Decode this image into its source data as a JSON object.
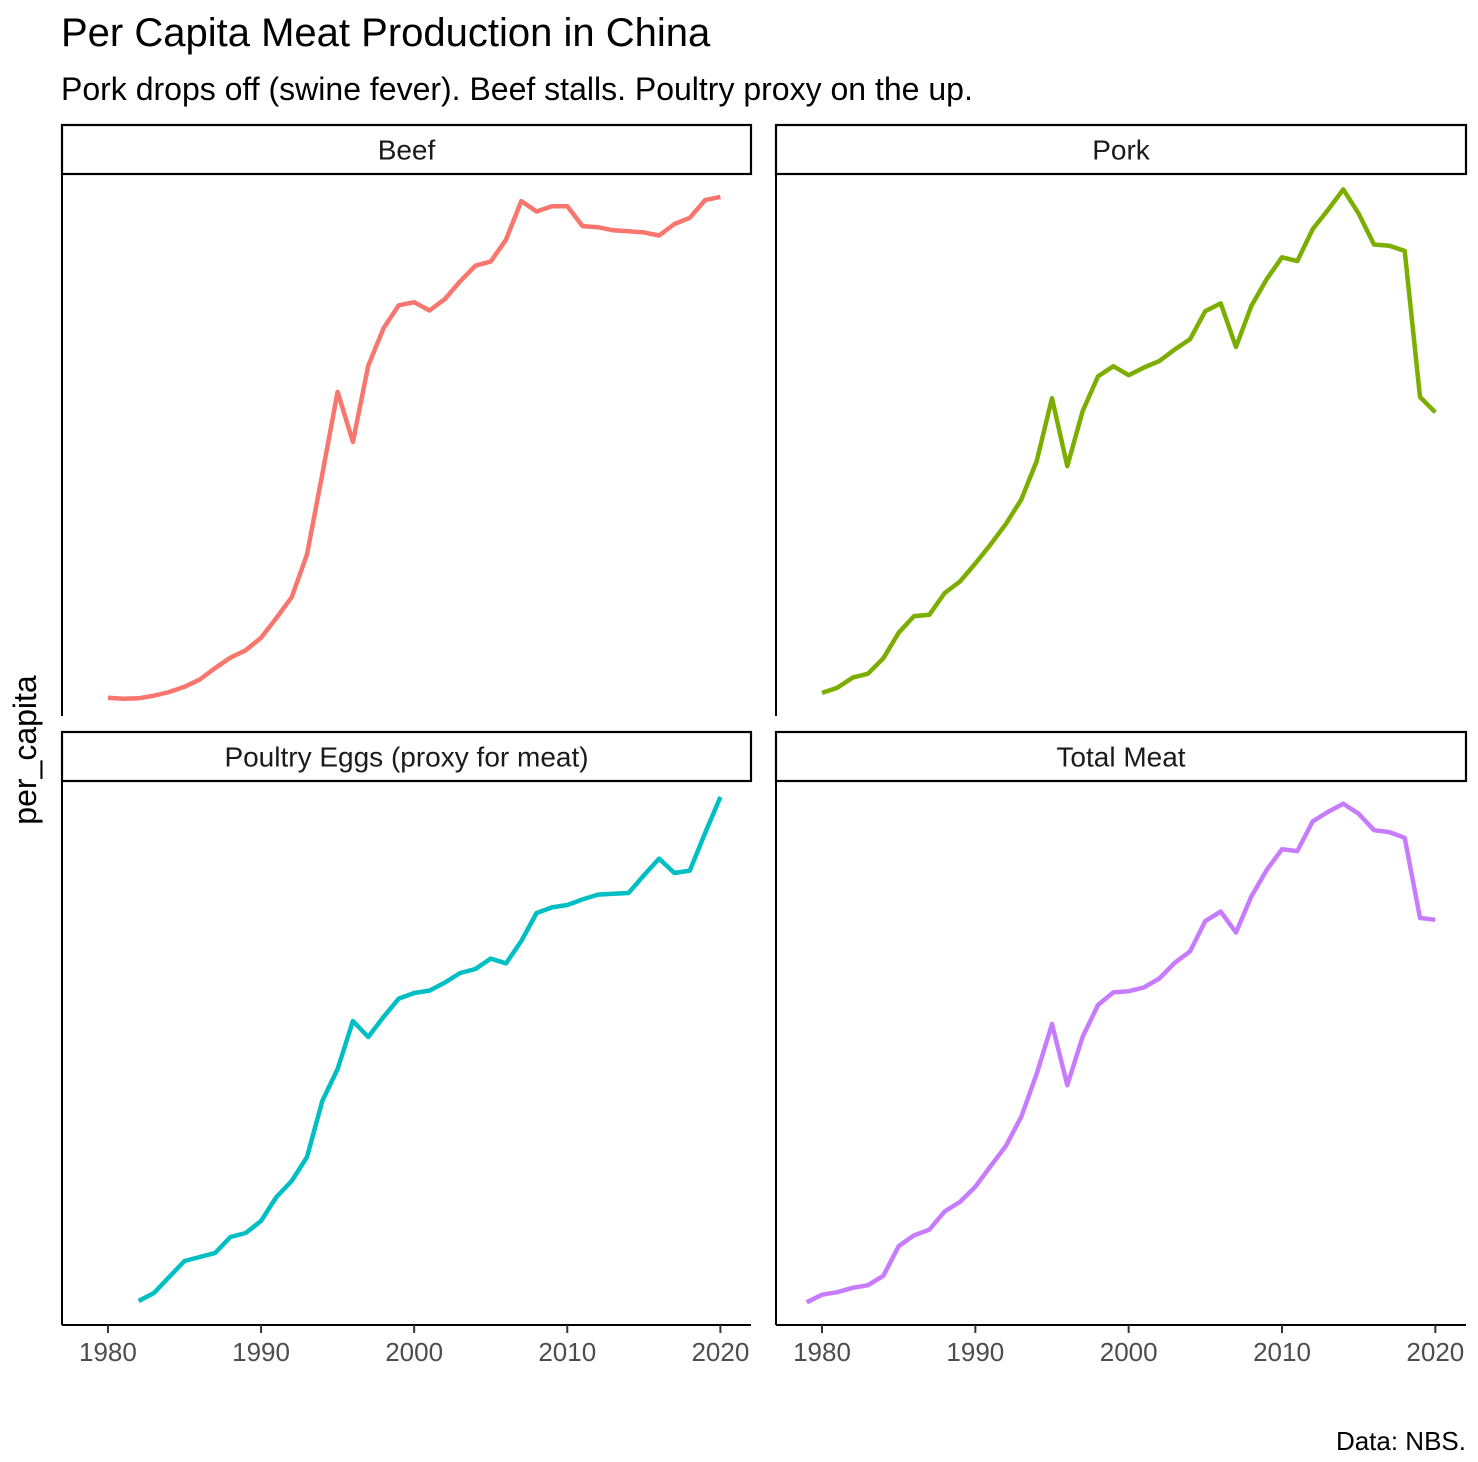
{
  "chart_data": {
    "type": "line",
    "title": "Per Capita Meat Production in China",
    "subtitle": "Pork drops off (swine fever). Beef stalls. Poultry proxy on the up.",
    "ylabel": "per_capita",
    "xlabel": "",
    "caption": "Data: NBS.",
    "x_ticks": [
      1980,
      1990,
      2000,
      2010,
      2020
    ],
    "xlim": [
      1977,
      2022
    ],
    "y_scale": "free per facet, no y tick labels shown",
    "grid": false,
    "legend": "none",
    "facets": [
      {
        "name": "Beef",
        "color": "#F8766D",
        "x": [
          1980,
          1981,
          1982,
          1983,
          1984,
          1985,
          1986,
          1987,
          1988,
          1989,
          1990,
          1991,
          1992,
          1993,
          1994,
          1995,
          1996,
          1997,
          1998,
          1999,
          2000,
          2001,
          2002,
          2003,
          2004,
          2005,
          2006,
          2007,
          2008,
          2009,
          2010,
          2011,
          2012,
          2013,
          2014,
          2015,
          2016,
          2017,
          2018,
          2019,
          2020
        ],
        "values": [
          0.25,
          0.15,
          0.2,
          0.45,
          0.8,
          1.3,
          2.0,
          3.1,
          4.1,
          4.8,
          6.0,
          7.9,
          9.9,
          14.0,
          21.7,
          29.6,
          24.8,
          32.1,
          35.7,
          37.9,
          38.2,
          37.4,
          38.5,
          40.2,
          41.7,
          42.1,
          44.2,
          47.9,
          46.9,
          47.4,
          47.4,
          45.5,
          45.4,
          45.1,
          45.0,
          44.9,
          44.6,
          45.7,
          46.3,
          48.0,
          48.3
        ],
        "ylim": [
          -1.5,
          50.5
        ]
      },
      {
        "name": "Pork",
        "color": "#7CAE00",
        "x": [
          1980,
          1981,
          1982,
          1983,
          1984,
          1985,
          1986,
          1987,
          1988,
          1989,
          1990,
          1991,
          1992,
          1993,
          1994,
          1995,
          1996,
          1997,
          1998,
          1999,
          2000,
          2001,
          2002,
          2003,
          2004,
          2005,
          2006,
          2007,
          2008,
          2009,
          2010,
          2011,
          2012,
          2013,
          2014,
          2015,
          2016,
          2017,
          2018,
          2019,
          2020
        ],
        "values": [
          11.8,
          12.2,
          13.0,
          13.3,
          14.5,
          16.5,
          17.8,
          17.9,
          19.6,
          20.5,
          21.9,
          23.4,
          25.0,
          26.9,
          29.9,
          34.8,
          29.5,
          33.8,
          36.5,
          37.3,
          36.6,
          37.2,
          37.7,
          38.6,
          39.4,
          41.6,
          42.2,
          38.8,
          42.0,
          44.1,
          45.8,
          45.5,
          48.0,
          49.5,
          51.1,
          49.2,
          46.8,
          46.7,
          46.3,
          34.9,
          33.7
        ],
        "ylim": [
          10.0,
          52.3
        ]
      },
      {
        "name": "Poultry Eggs (proxy for meat)",
        "color": "#00BFC4",
        "x": [
          1982,
          1983,
          1984,
          1985,
          1986,
          1987,
          1988,
          1989,
          1990,
          1991,
          1992,
          1993,
          1994,
          1995,
          1996,
          1997,
          1998,
          1999,
          2000,
          2001,
          2002,
          2003,
          2004,
          2005,
          2006,
          2007,
          2008,
          2009,
          2010,
          2011,
          2012,
          2013,
          2014,
          2015,
          2016,
          2017,
          2018,
          2019,
          2020
        ],
        "values": [
          3.0,
          3.1,
          3.3,
          3.5,
          3.55,
          3.6,
          3.8,
          3.85,
          4.0,
          4.3,
          4.5,
          4.8,
          5.5,
          5.9,
          6.5,
          6.3,
          6.55,
          6.78,
          6.85,
          6.88,
          6.98,
          7.1,
          7.15,
          7.28,
          7.22,
          7.5,
          7.85,
          7.92,
          7.95,
          8.02,
          8.08,
          8.09,
          8.1,
          8.32,
          8.53,
          8.35,
          8.38,
          8.85,
          9.3
        ],
        "ylim": [
          2.7,
          9.5
        ]
      },
      {
        "name": "Total Meat",
        "color": "#C77CFF",
        "x": [
          1979,
          1980,
          1981,
          1982,
          1983,
          1984,
          1985,
          1986,
          1987,
          1988,
          1989,
          1990,
          1991,
          1992,
          1993,
          1994,
          1995,
          1996,
          1997,
          1998,
          1999,
          2000,
          2001,
          2002,
          2003,
          2004,
          2005,
          2006,
          2007,
          2008,
          2009,
          2010,
          2011,
          2012,
          2013,
          2014,
          2015,
          2016,
          2017,
          2018,
          2019,
          2020
        ],
        "values": [
          11.0,
          12.2,
          12.6,
          13.3,
          13.7,
          15.2,
          19.9,
          21.6,
          22.5,
          25.4,
          26.9,
          29.3,
          32.6,
          35.8,
          40.4,
          47.2,
          55.1,
          45.4,
          53.1,
          58.1,
          60.1,
          60.3,
          60.9,
          62.3,
          64.8,
          66.6,
          71.4,
          72.9,
          69.6,
          75.3,
          79.5,
          82.8,
          82.5,
          87.2,
          88.7,
          90.0,
          88.4,
          85.8,
          85.5,
          84.6,
          71.9,
          71.6
        ],
        "ylim": [
          7.4,
          93.6
        ]
      }
    ]
  }
}
